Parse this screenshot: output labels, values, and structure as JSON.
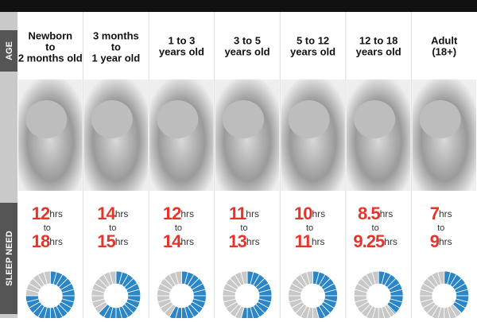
{
  "side_labels": {
    "age": "AGE",
    "sleep": "SLEEP NEED"
  },
  "unit": "hrs",
  "between": "to",
  "columns": [
    {
      "age": [
        "Newborn",
        "to",
        "2 months old"
      ],
      "min": 12,
      "max": 18
    },
    {
      "age": [
        "3 months",
        "to",
        "1 year old"
      ],
      "min": 14,
      "max": 15
    },
    {
      "age": [
        "1 to 3",
        "years old"
      ],
      "min": 12,
      "max": 14
    },
    {
      "age": [
        "3 to 5",
        "years old"
      ],
      "min": 11,
      "max": 13
    },
    {
      "age": [
        "5 to 12",
        "years old"
      ],
      "min": 10,
      "max": 11
    },
    {
      "age": [
        "12 to 18",
        "years old"
      ],
      "min": 8.5,
      "max": 9.25
    },
    {
      "age": [
        "Adult",
        "(18+)"
      ],
      "min": 7,
      "max": 9
    }
  ]
}
